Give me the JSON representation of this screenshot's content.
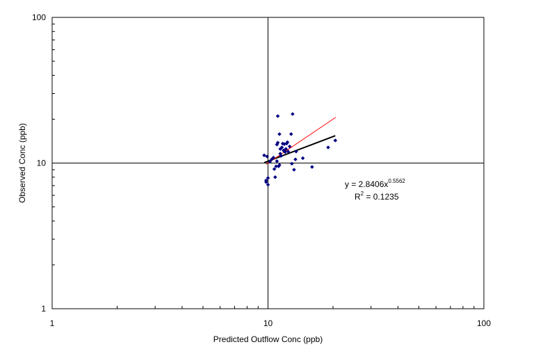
{
  "chart_data": {
    "type": "scatter",
    "title": "",
    "xlabel": "Predicted Outflow Conc (ppb)",
    "ylabel": "Observed Conc (ppb)",
    "xscale": "log",
    "yscale": "log",
    "xlim": [
      1,
      100
    ],
    "ylim": [
      1,
      100
    ],
    "x_ticks": [
      "1",
      "10",
      "100"
    ],
    "y_ticks": [
      "1",
      "10",
      "100"
    ],
    "grid": false,
    "reference_lines": {
      "x": 10,
      "y": 10
    },
    "series": [
      {
        "type": "scatter",
        "color": "#000080",
        "points": [
          [
            9.6,
            11.3
          ],
          [
            9.9,
            11.1
          ],
          [
            9.8,
            7.6
          ],
          [
            9.8,
            7.4
          ],
          [
            10.0,
            7.1
          ],
          [
            10.0,
            7.9
          ],
          [
            10.2,
            10.2
          ],
          [
            10.4,
            10.6
          ],
          [
            10.6,
            10.9
          ],
          [
            10.7,
            9.1
          ],
          [
            10.8,
            8.0
          ],
          [
            10.9,
            9.5
          ],
          [
            11.0,
            13.4
          ],
          [
            11.0,
            10.3
          ],
          [
            11.1,
            13.8
          ],
          [
            11.1,
            21.0
          ],
          [
            11.2,
            9.5
          ],
          [
            11.3,
            15.8
          ],
          [
            11.3,
            9.7
          ],
          [
            11.4,
            12.5
          ],
          [
            11.4,
            11.6
          ],
          [
            11.5,
            11.2
          ],
          [
            11.6,
            12.8
          ],
          [
            11.7,
            13.6
          ],
          [
            11.8,
            12.2
          ],
          [
            11.9,
            13.5
          ],
          [
            12.0,
            11.9
          ],
          [
            12.1,
            12.5
          ],
          [
            12.2,
            13.6
          ],
          [
            12.3,
            13.9
          ],
          [
            12.4,
            12.0
          ],
          [
            12.6,
            13.0
          ],
          [
            12.8,
            15.8
          ],
          [
            12.9,
            9.9
          ],
          [
            13.0,
            21.7
          ],
          [
            13.2,
            9.0
          ],
          [
            13.4,
            10.6
          ],
          [
            13.5,
            12.0
          ],
          [
            14.5,
            10.8
          ],
          [
            16.0,
            9.4
          ],
          [
            19.0,
            12.8
          ],
          [
            20.5,
            14.3
          ]
        ]
      },
      {
        "type": "line",
        "color": "#000000",
        "role": "power trendline",
        "x": [
          9.6,
          20.5
        ],
        "y": [
          10.06,
          15.4
        ]
      },
      {
        "type": "line",
        "color": "#ff0000",
        "role": "reference line",
        "x": [
          9.8,
          20.6
        ],
        "y": [
          9.8,
          20.6
        ]
      }
    ],
    "annotations": {
      "equation_base": "y = 2.8406x",
      "equation_exp": "0.5562",
      "r2_base": "R",
      "r2_exp": "2",
      "r2_value": " = 0.1235"
    }
  }
}
